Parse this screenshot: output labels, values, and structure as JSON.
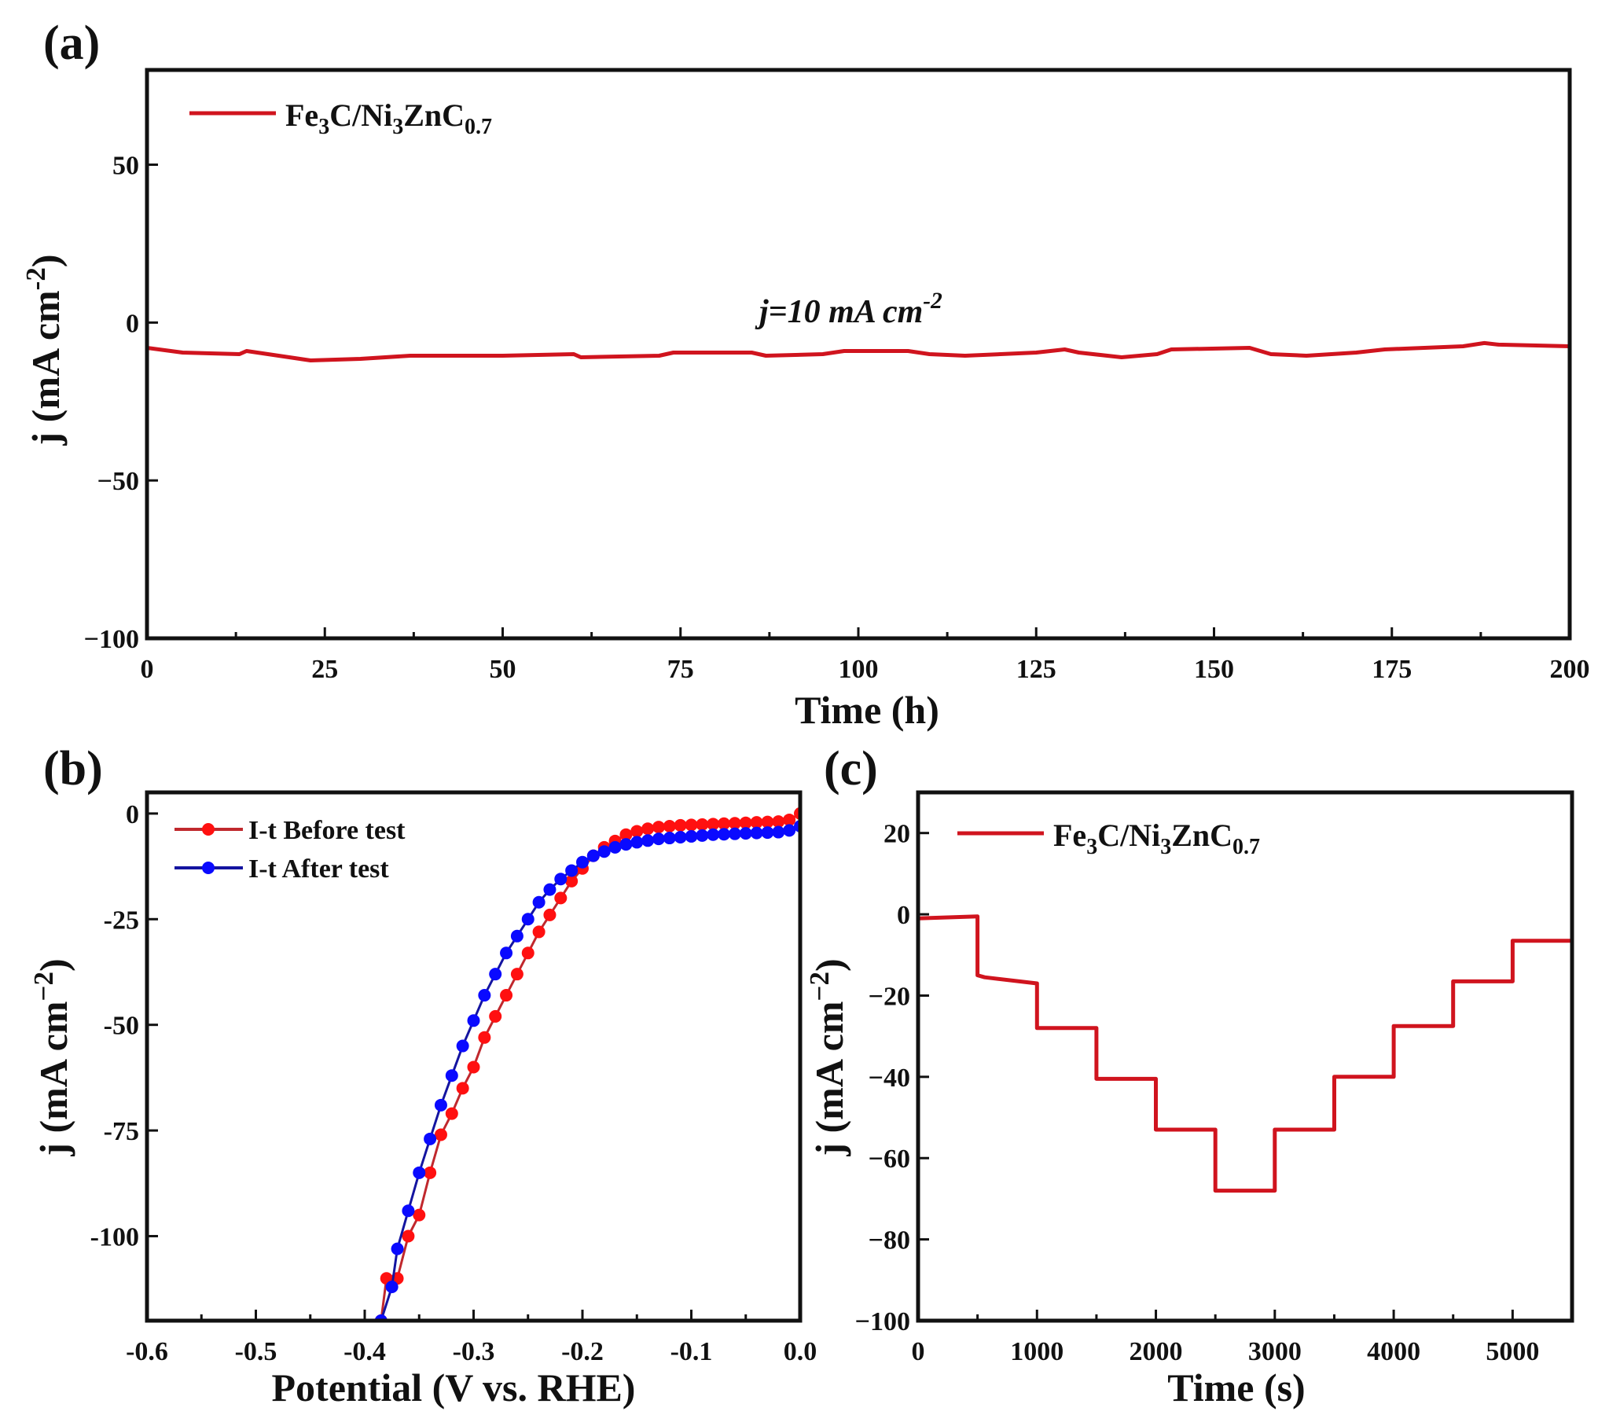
{
  "chart_data": [
    {
      "panel": "(a)",
      "type": "line",
      "xlabel": "Time (h)",
      "ylabel": {
        "main": "j (mA cm",
        "sup": "-2",
        "end": ")"
      },
      "xlim": [
        0,
        200
      ],
      "ylim": [
        -100,
        80
      ],
      "xticks": [
        0,
        25,
        50,
        75,
        100,
        125,
        150,
        175,
        200
      ],
      "xtick_labels": [
        "0",
        "25",
        "50",
        "75",
        "100",
        "125",
        "150",
        "175",
        "200"
      ],
      "yticks": [
        -100,
        -50,
        0,
        50
      ],
      "ytick_labels": [
        "−100",
        "−50",
        "0",
        "50"
      ],
      "legend": {
        "position": "top-left",
        "parts": [
          {
            "t": "Fe"
          },
          {
            "t": "3",
            "sub": true
          },
          {
            "t": "C/Ni"
          },
          {
            "t": "3",
            "sub": true
          },
          {
            "t": "ZnC"
          },
          {
            "t": "0.7",
            "sub": true
          }
        ]
      },
      "annotation": {
        "main": "j=10 mA cm",
        "sup": "-2"
      },
      "colors": {
        "line": "#d0141e"
      },
      "series": [
        {
          "name": "Fe3C/Ni3ZnC0.7",
          "x": [
            0,
            5,
            13,
            14,
            17,
            23,
            30,
            37,
            50,
            60,
            61,
            72,
            74,
            85,
            87,
            95,
            98,
            107,
            110,
            115,
            125,
            129,
            131,
            137,
            142,
            144,
            155,
            158,
            163,
            170,
            174,
            185,
            188,
            190,
            200
          ],
          "y": [
            -8,
            -9.5,
            -10,
            -9,
            -10,
            -12,
            -11.5,
            -10.5,
            -10.5,
            -10,
            -11,
            -10.5,
            -9.5,
            -9.5,
            -10.5,
            -10,
            -9,
            -9,
            -10,
            -10.5,
            -9.5,
            -8.5,
            -9.5,
            -11,
            -10,
            -8.5,
            -8,
            -10,
            -10.5,
            -9.5,
            -8.5,
            -7.5,
            -6.5,
            -7,
            -7.5
          ]
        }
      ]
    },
    {
      "panel": "(b)",
      "type": "line",
      "xlabel": "Potential (V vs. RHE)",
      "ylabel": {
        "main": "j (mA cm",
        "sup": "−2",
        "end": ")"
      },
      "xlim": [
        -0.6,
        0.0
      ],
      "ylim": [
        -120,
        5
      ],
      "xticks": [
        -0.6,
        -0.5,
        -0.4,
        -0.3,
        -0.2,
        -0.1,
        0.0
      ],
      "xtick_labels": [
        "-0.6",
        "-0.5",
        "-0.4",
        "-0.3",
        "-0.2",
        "-0.1",
        "0.0"
      ],
      "yticks": [
        0,
        -25,
        -50,
        -75,
        -100
      ],
      "ytick_labels": [
        "0",
        "-25",
        "-50",
        "-75",
        "-100"
      ],
      "legend": {
        "position": "top-left"
      },
      "series": [
        {
          "name": "I-t Before test",
          "line_color": "#c0282d",
          "marker_color": "#ff1010",
          "x": [
            -0.385,
            -0.38,
            -0.37,
            -0.36,
            -0.35,
            -0.34,
            -0.33,
            -0.32,
            -0.31,
            -0.3,
            -0.29,
            -0.28,
            -0.27,
            -0.26,
            -0.25,
            -0.24,
            -0.23,
            -0.22,
            -0.21,
            -0.2,
            -0.19,
            -0.18,
            -0.17,
            -0.16,
            -0.15,
            -0.14,
            -0.13,
            -0.12,
            -0.11,
            -0.1,
            -0.09,
            -0.08,
            -0.07,
            -0.06,
            -0.05,
            -0.04,
            -0.03,
            -0.02,
            -0.01,
            0.0
          ],
          "y": [
            -120,
            -110,
            -110,
            -100,
            -95,
            -85,
            -76,
            -71,
            -65,
            -60,
            -53,
            -48,
            -43,
            -38,
            -33,
            -28,
            -24,
            -20,
            -16,
            -13,
            -10,
            -8,
            -6.5,
            -5,
            -4.2,
            -3.6,
            -3.2,
            -3,
            -2.8,
            -2.7,
            -2.6,
            -2.5,
            -2.4,
            -2.3,
            -2.2,
            -2.1,
            -2,
            -1.9,
            -1.5,
            0
          ]
        },
        {
          "name": "I-t After test",
          "line_color": "#1414a0",
          "marker_color": "#0a0aff",
          "x": [
            -0.385,
            -0.375,
            -0.37,
            -0.36,
            -0.35,
            -0.34,
            -0.33,
            -0.32,
            -0.31,
            -0.3,
            -0.29,
            -0.28,
            -0.27,
            -0.26,
            -0.25,
            -0.24,
            -0.23,
            -0.22,
            -0.21,
            -0.2,
            -0.19,
            -0.18,
            -0.17,
            -0.16,
            -0.15,
            -0.14,
            -0.13,
            -0.12,
            -0.11,
            -0.1,
            -0.09,
            -0.08,
            -0.07,
            -0.06,
            -0.05,
            -0.04,
            -0.03,
            -0.02,
            -0.01,
            0.0
          ],
          "y": [
            -120,
            -112,
            -103,
            -94,
            -85,
            -77,
            -69,
            -62,
            -55,
            -49,
            -43,
            -38,
            -33,
            -29,
            -25,
            -21,
            -18,
            -15.5,
            -13.5,
            -11.5,
            -10,
            -9,
            -8,
            -7.3,
            -6.8,
            -6.4,
            -6,
            -5.8,
            -5.6,
            -5.4,
            -5.2,
            -5,
            -4.9,
            -4.8,
            -4.7,
            -4.6,
            -4.5,
            -4.4,
            -4,
            -3
          ]
        }
      ]
    },
    {
      "panel": "(c)",
      "type": "line",
      "xlabel": "Time (s)",
      "ylabel": {
        "main": "j (mA cm",
        "sup": "−2",
        "end": ")"
      },
      "xlim": [
        0,
        5500
      ],
      "ylim": [
        -100,
        30
      ],
      "xticks": [
        0,
        1000,
        2000,
        3000,
        4000,
        5000
      ],
      "xtick_labels": [
        "0",
        "1000",
        "2000",
        "3000",
        "4000",
        "5000"
      ],
      "yticks": [
        -100,
        -80,
        -60,
        -40,
        -20,
        0,
        20
      ],
      "ytick_labels": [
        "−100",
        "−80",
        "−60",
        "−40",
        "−20",
        "0",
        "20"
      ],
      "legend": {
        "position": "top-left",
        "parts": [
          {
            "t": "Fe"
          },
          {
            "t": "3",
            "sub": true
          },
          {
            "t": "C/Ni"
          },
          {
            "t": "3",
            "sub": true
          },
          {
            "t": "ZnC"
          },
          {
            "t": "0.7",
            "sub": true
          }
        ]
      },
      "colors": {
        "line": "#d0141e"
      },
      "series": [
        {
          "name": "Fe3C/Ni3ZnC0.7",
          "x": [
            0,
            500,
            500,
            560,
            1000,
            1000,
            1500,
            1500,
            2000,
            2000,
            2500,
            2500,
            3000,
            3000,
            3500,
            3500,
            4000,
            4000,
            4500,
            4500,
            5000,
            5000,
            5500
          ],
          "y": [
            -1,
            -0.5,
            -15,
            -15.5,
            -17,
            -28,
            -28,
            -40.5,
            -40.5,
            -53,
            -53,
            -68,
            -68,
            -53,
            -53,
            -40,
            -40,
            -27.5,
            -27.5,
            -16.5,
            -16.5,
            -6.5,
            -6.5
          ]
        }
      ]
    }
  ]
}
